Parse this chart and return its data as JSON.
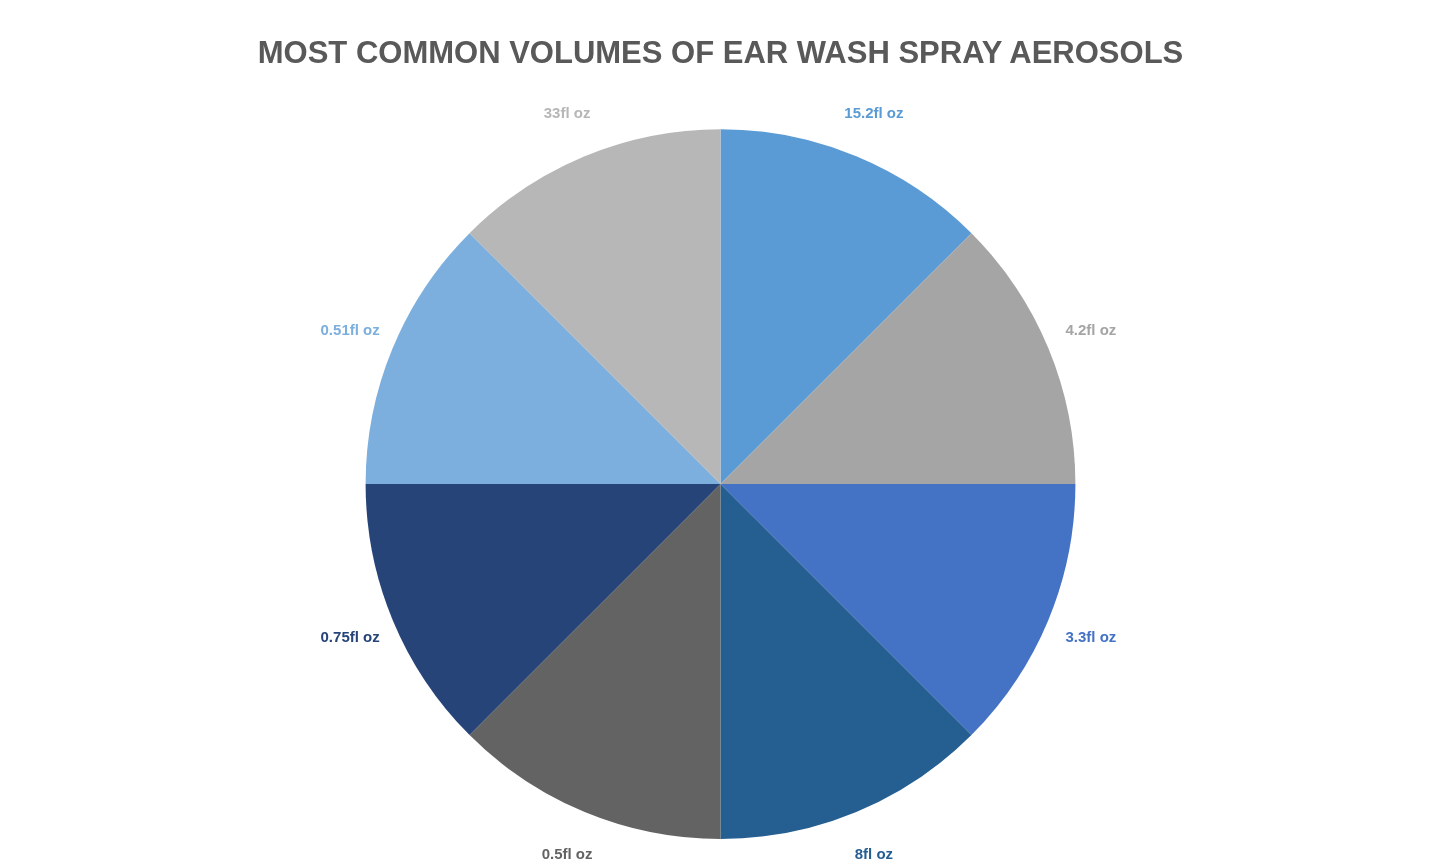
{
  "chart_data": {
    "type": "pie",
    "title": "MOST COMMON VOLUMES OF EAR WASH SPRAY AEROSOLS",
    "categories": [
      "15.2fl oz",
      "4.2fl oz",
      "3.3fl oz",
      "8fl oz",
      "0.5fl oz",
      "0.75fl oz",
      "0.51fl oz",
      "33fl oz"
    ],
    "values": [
      12.5,
      12.5,
      12.5,
      12.5,
      12.5,
      12.5,
      12.5,
      12.5
    ],
    "colors": [
      "#5b9bd5",
      "#a5a5a5",
      "#4472c4",
      "#255e91",
      "#636363",
      "#264478",
      "#7cafdd",
      "#b7b7b7"
    ]
  }
}
